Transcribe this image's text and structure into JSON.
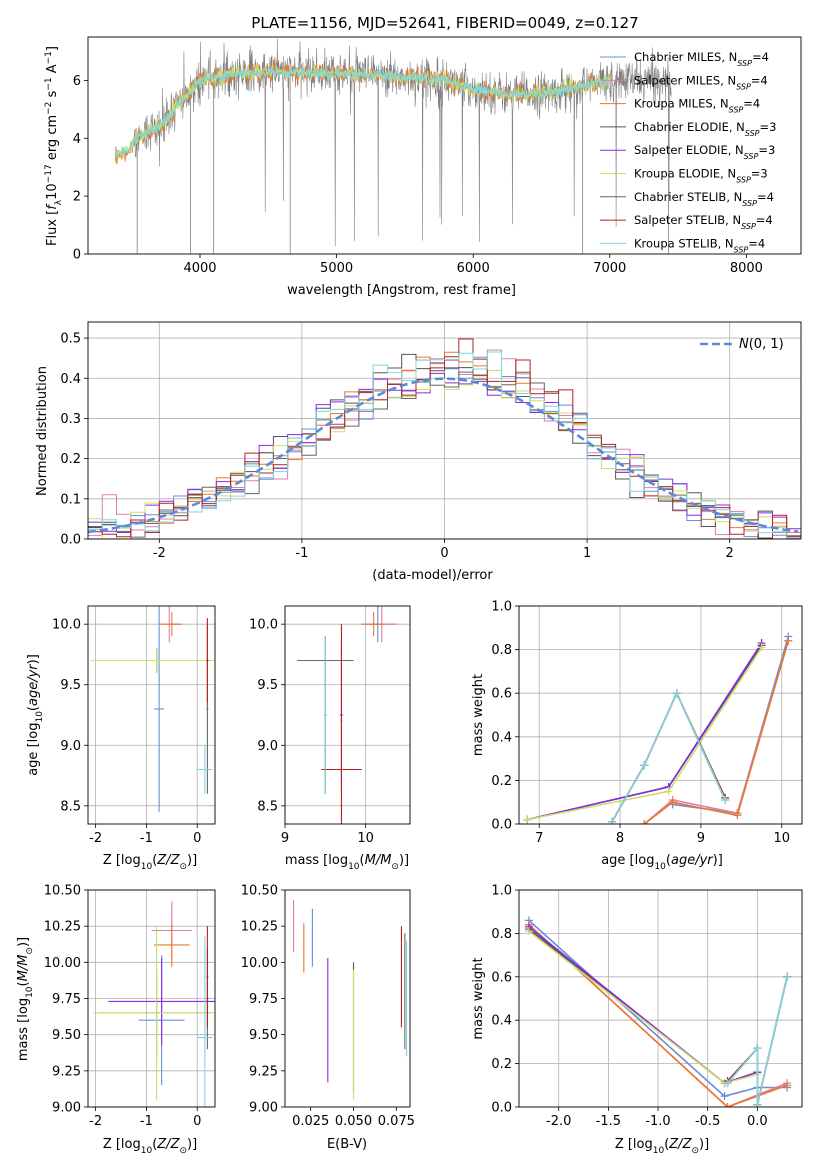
{
  "figure": {
    "title": "PLATE=1156, MJD=52641, FIBERID=0049, z=0.127"
  },
  "colors": {
    "Chabrier MILES": "#6b8fd6",
    "Salpeter MILES": "#e07ca8",
    "Kroupa MILES": "#e8792c",
    "Chabrier ELODIE": "#555555",
    "Salpeter ELODIE": "#8a2be2",
    "Kroupa ELODIE": "#c8e06a",
    "Chabrier STELIB": "#666666",
    "Salpeter STELIB": "#b22222",
    "Kroupa STELIB": "#7fd6de"
  },
  "chart_data": [
    {
      "id": "spectrum",
      "type": "line",
      "title": "PLATE=1156, MJD=52641, FIBERID=0049, z=0.127",
      "xlabel": "wavelength [Angstrom, rest frame]",
      "ylabel": "Flux [f_λ 10^-17 erg cm^-2 s^-1 A^-1]",
      "xlim": [
        3180,
        8400
      ],
      "ylim": [
        0,
        7.5
      ],
      "xticks": [
        4000,
        5000,
        6000,
        7000,
        8000
      ],
      "yticks": [
        0,
        2,
        4,
        6
      ],
      "legend_position": "top-right",
      "legend": [
        {
          "label": "Chabrier MILES, N",
          "sub": "SSP",
          "suffix": "=4"
        },
        {
          "label": "Salpeter MILES, N",
          "sub": "SSP",
          "suffix": "=4"
        },
        {
          "label": "Kroupa MILES, N",
          "sub": "SSP",
          "suffix": "=4"
        },
        {
          "label": "Chabrier ELODIE, N",
          "sub": "SSP",
          "suffix": "=3"
        },
        {
          "label": "Salpeter ELODIE, N",
          "sub": "SSP",
          "suffix": "=3"
        },
        {
          "label": "Kroupa ELODIE, N",
          "sub": "SSP",
          "suffix": "=3"
        },
        {
          "label": "Chabrier STELIB, N",
          "sub": "SSP",
          "suffix": "=4"
        },
        {
          "label": "Salpeter STELIB, N",
          "sub": "SSP",
          "suffix": "=4"
        },
        {
          "label": "Kroupa STELIB, N",
          "sub": "SSP",
          "suffix": "=4"
        }
      ],
      "continuum_knots": [
        [
          3380,
          3.4
        ],
        [
          3480,
          3.6
        ],
        [
          3550,
          4.1
        ],
        [
          3700,
          4.4
        ],
        [
          3900,
          5.5
        ],
        [
          4000,
          6.0
        ],
        [
          4200,
          6.2
        ],
        [
          4500,
          6.3
        ],
        [
          5000,
          6.25
        ],
        [
          5500,
          6.1
        ],
        [
          5800,
          6.0
        ],
        [
          6000,
          5.7
        ],
        [
          6300,
          5.5
        ],
        [
          6600,
          5.6
        ],
        [
          7000,
          6.0
        ],
        [
          7200,
          6.0
        ]
      ],
      "gray_observed_range": [
        3500,
        7450
      ],
      "model_range": [
        3380,
        7000
      ]
    },
    {
      "id": "residuals",
      "type": "line",
      "xlabel": "(data-model)/error",
      "ylabel": "Normed distribution",
      "xlim": [
        -2.5,
        2.5
      ],
      "ylim": [
        0,
        0.54
      ],
      "xticks": [
        -2,
        -1,
        0,
        1,
        2
      ],
      "yticks": [
        0.0,
        0.1,
        0.2,
        0.3,
        0.4,
        0.5
      ],
      "grid": true,
      "legend_position": "top-right",
      "legend": "N(0,1)",
      "gaussian": {
        "mean": 0,
        "sigma": 1,
        "style": "dashed",
        "color": "#5b8bd6"
      },
      "bin_width": 0.1
    },
    {
      "id": "age-vs-Z",
      "type": "scatter",
      "xlabel": "Z [log10(Z/Z⊙)]",
      "ylabel": "age [log10(age/yr)]",
      "xlim": [
        -2.15,
        0.35
      ],
      "ylim": [
        8.35,
        10.15
      ],
      "xticks": [
        -2,
        -1,
        0
      ],
      "yticks": [
        8.5,
        9.0,
        9.5,
        10.0
      ],
      "grid": true,
      "errorbars": [
        {
          "model": "Chabrier MILES",
          "x": -0.75,
          "xerr": 0.1,
          "y": 9.3,
          "yerr": 0.85
        },
        {
          "model": "Salpeter MILES",
          "x": -0.55,
          "xerr": 0.2,
          "y": 10.0,
          "yerr": 0.15
        },
        {
          "model": "Kroupa MILES",
          "x": -0.5,
          "xerr": 0.2,
          "y": 10.0,
          "yerr": 0.1
        },
        {
          "model": "Chabrier ELODIE",
          "x": -0.8,
          "xerr": 1.3,
          "y": 9.7,
          "yerr": 0.1
        },
        {
          "model": "Salpeter ELODIE",
          "x": -0.8,
          "xerr": 1.3,
          "y": 9.7,
          "yerr": 0.1
        },
        {
          "model": "Kroupa ELODIE",
          "x": -0.8,
          "xerr": 1.3,
          "y": 9.7,
          "yerr": 0.1
        },
        {
          "model": "Chabrier STELIB",
          "x": 0.2,
          "xerr": 0.02,
          "y": 9.3,
          "yerr": 0.7
        },
        {
          "model": "Salpeter STELIB",
          "x": 0.2,
          "xerr": 0.02,
          "y": 9.7,
          "yerr": 0.35
        },
        {
          "model": "Kroupa STELIB",
          "x": 0.15,
          "xerr": 0.15,
          "y": 8.8,
          "yerr": 0.2
        }
      ]
    },
    {
      "id": "age-vs-mass",
      "type": "scatter",
      "xlabel": "mass [log10(M/M⊙)]",
      "ylabel": "",
      "xlim": [
        9.0,
        10.55
      ],
      "ylim": [
        8.35,
        10.15
      ],
      "xticks": [
        9,
        10
      ],
      "yticks": [
        8.5,
        9.0,
        9.5,
        10.0
      ],
      "grid": true,
      "errorbars": [
        {
          "model": "Chabrier MILES",
          "x": 10.15,
          "xerr": 0.2,
          "y": 10.0,
          "yerr": 0.15
        },
        {
          "model": "Salpeter MILES",
          "x": 10.2,
          "xerr": 0.2,
          "y": 10.0,
          "yerr": 0.15
        },
        {
          "model": "Kroupa MILES",
          "x": 10.1,
          "xerr": 0.15,
          "y": 10.0,
          "yerr": 0.1
        },
        {
          "model": "Chabrier ELODIE",
          "x": 9.5,
          "xerr": 0.02,
          "y": 9.25,
          "yerr": 0.65
        },
        {
          "model": "Salpeter ELODIE",
          "x": 9.7,
          "xerr": 0.02,
          "y": 9.25,
          "yerr": 0.6
        },
        {
          "model": "Kroupa ELODIE",
          "x": 9.7,
          "xerr": 0.02,
          "y": 9.2,
          "yerr": 0.6
        },
        {
          "model": "Chabrier STELIB",
          "x": 9.5,
          "xerr": 0.35,
          "y": 9.7,
          "yerr": 0.0
        },
        {
          "model": "Salpeter STELIB",
          "x": 9.7,
          "xerr": 0.25,
          "y": 8.8,
          "yerr": 1.2
        },
        {
          "model": "Kroupa STELIB",
          "x": 9.5,
          "xerr": 0.02,
          "y": 9.25,
          "yerr": 0.65
        }
      ]
    },
    {
      "id": "mass-weight-vs-age",
      "type": "line",
      "xlabel": "age [log10(age/yr)]",
      "ylabel": "mass weight",
      "xlim": [
        6.75,
        10.25
      ],
      "ylim": [
        0,
        1.0
      ],
      "xticks": [
        7,
        8,
        9,
        10
      ],
      "yticks": [
        0.0,
        0.2,
        0.4,
        0.6,
        0.8,
        1.0
      ],
      "grid": true,
      "series": [
        {
          "model": "Chabrier MILES",
          "x": [
            8.65,
            9.45,
            10.08
          ],
          "y": [
            0.09,
            0.05,
            0.86
          ]
        },
        {
          "model": "Salpeter MILES",
          "x": [
            8.3,
            8.65,
            9.45,
            10.08
          ],
          "y": [
            0.0,
            0.11,
            0.05,
            0.84
          ]
        },
        {
          "model": "Kroupa MILES",
          "x": [
            8.3,
            8.65,
            9.45,
            10.08
          ],
          "y": [
            0.0,
            0.1,
            0.04,
            0.84
          ]
        },
        {
          "model": "Chabrier ELODIE",
          "x": [
            6.85,
            8.6,
            9.75
          ],
          "y": [
            0.02,
            0.17,
            0.82
          ]
        },
        {
          "model": "Salpeter ELODIE",
          "x": [
            6.85,
            8.6,
            9.75
          ],
          "y": [
            0.02,
            0.17,
            0.83
          ]
        },
        {
          "model": "Kroupa ELODIE",
          "x": [
            6.85,
            8.6,
            9.75
          ],
          "y": [
            0.02,
            0.15,
            0.81
          ]
        },
        {
          "model": "Chabrier STELIB",
          "x": [
            7.9,
            8.3,
            8.7,
            9.3
          ],
          "y": [
            0.01,
            0.27,
            0.6,
            0.11
          ]
        },
        {
          "model": "Salpeter STELIB",
          "x": [
            7.9,
            8.3,
            8.7,
            9.3
          ],
          "y": [
            0.01,
            0.27,
            0.6,
            0.12
          ]
        },
        {
          "model": "Kroupa STELIB",
          "x": [
            7.9,
            8.3,
            8.7,
            9.3
          ],
          "y": [
            0.01,
            0.27,
            0.6,
            0.11
          ]
        }
      ]
    },
    {
      "id": "mass-vs-Z",
      "type": "scatter",
      "xlabel": "Z [log10(Z/Z⊙)]",
      "ylabel": "mass [log10(M/M⊙)]",
      "xlim": [
        -2.15,
        0.35
      ],
      "ylim": [
        9.0,
        10.5
      ],
      "xticks": [
        -2,
        -1,
        0
      ],
      "yticks": [
        9.0,
        9.25,
        9.5,
        9.75,
        10.0,
        10.25,
        10.5
      ],
      "grid": true,
      "errorbars": [
        {
          "model": "Chabrier MILES",
          "x": -0.7,
          "xerr": 0.45,
          "y": 9.6,
          "yerr": 0.45
        },
        {
          "model": "Salpeter MILES",
          "x": -0.5,
          "xerr": 0.4,
          "y": 10.22,
          "yerr": 0.2
        },
        {
          "model": "Kroupa MILES",
          "x": -0.5,
          "xerr": 0.35,
          "y": 10.12,
          "yerr": 0.15
        },
        {
          "model": "Chabrier ELODIE",
          "x": -0.8,
          "xerr": 1.1,
          "y": 9.65,
          "yerr": 0.3
        },
        {
          "model": "Salpeter ELODIE",
          "x": -0.7,
          "xerr": 1.05,
          "y": 9.73,
          "yerr": 0.3
        },
        {
          "model": "Kroupa ELODIE",
          "x": -0.8,
          "xerr": 1.25,
          "y": 9.65,
          "yerr": 0.6
        },
        {
          "model": "Chabrier STELIB",
          "x": 0.2,
          "xerr": 0.02,
          "y": 9.75,
          "yerr": 0.35
        },
        {
          "model": "Salpeter STELIB",
          "x": 0.2,
          "xerr": 0.02,
          "y": 9.9,
          "yerr": 0.35
        },
        {
          "model": "Kroupa STELIB",
          "x": 0.15,
          "xerr": 0.15,
          "y": 9.48,
          "yerr": 0.7
        }
      ]
    },
    {
      "id": "mass-vs-ebv",
      "type": "scatter",
      "xlabel": "E(B-V)",
      "ylabel": "",
      "xlim": [
        0.01,
        0.083
      ],
      "ylim": [
        9.0,
        10.5
      ],
      "xticks": [
        0.025,
        0.05,
        0.075
      ],
      "yticks": [
        9.0,
        9.25,
        9.5,
        9.75,
        10.0,
        10.25,
        10.5
      ],
      "grid": false,
      "errorbars": [
        {
          "model": "Chabrier MILES",
          "x": 0.026,
          "xerr": 0,
          "y": 10.17,
          "yerr": 0.2
        },
        {
          "model": "Salpeter MILES",
          "x": 0.015,
          "xerr": 0,
          "y": 10.25,
          "yerr": 0.18
        },
        {
          "model": "Kroupa MILES",
          "x": 0.021,
          "xerr": 0,
          "y": 10.1,
          "yerr": 0.17
        },
        {
          "model": "Chabrier ELODIE",
          "x": 0.05,
          "xerr": 0,
          "y": 9.55,
          "yerr": 0.45
        },
        {
          "model": "Salpeter ELODIE",
          "x": 0.035,
          "xerr": 0,
          "y": 9.6,
          "yerr": 0.43
        },
        {
          "model": "Kroupa ELODIE",
          "x": 0.05,
          "xerr": 0,
          "y": 9.5,
          "yerr": 0.45
        },
        {
          "model": "Chabrier STELIB",
          "x": 0.08,
          "xerr": 0,
          "y": 9.8,
          "yerr": 0.4
        },
        {
          "model": "Salpeter STELIB",
          "x": 0.078,
          "xerr": 0,
          "y": 9.9,
          "yerr": 0.35
        },
        {
          "model": "Kroupa STELIB",
          "x": 0.081,
          "xerr": 0,
          "y": 9.75,
          "yerr": 0.4
        }
      ]
    },
    {
      "id": "mass-weight-vs-Z",
      "type": "line",
      "xlabel": "Z [log10(Z/Z⊙)]",
      "ylabel": "mass weight",
      "xlim": [
        -2.4,
        0.45
      ],
      "ylim": [
        0,
        1.0
      ],
      "xticks": [
        -2.0,
        -1.5,
        -1.0,
        -0.5,
        0.0
      ],
      "yticks": [
        0.0,
        0.2,
        0.4,
        0.6,
        0.8,
        1.0
      ],
      "grid": true,
      "series": [
        {
          "model": "Chabrier MILES",
          "x": [
            -2.3,
            -0.33,
            0.0,
            0.3
          ],
          "y": [
            0.86,
            0.05,
            0.09,
            0.09
          ]
        },
        {
          "model": "Salpeter MILES",
          "x": [
            -2.3,
            -0.3,
            0.3
          ],
          "y": [
            0.84,
            0.0,
            0.11
          ]
        },
        {
          "model": "Kroupa MILES",
          "x": [
            -2.3,
            -0.3,
            0.3
          ],
          "y": [
            0.84,
            0.0,
            0.1
          ]
        },
        {
          "model": "Chabrier ELODIE",
          "x": [
            -2.3,
            -0.33,
            0.0
          ],
          "y": [
            0.82,
            0.11,
            0.16
          ]
        },
        {
          "model": "Salpeter ELODIE",
          "x": [
            -2.3,
            -0.33,
            0.0
          ],
          "y": [
            0.83,
            0.11,
            0.16
          ]
        },
        {
          "model": "Kroupa ELODIE",
          "x": [
            -2.3,
            -0.33,
            0.0
          ],
          "y": [
            0.81,
            0.11,
            0.15
          ]
        },
        {
          "model": "Chabrier STELIB",
          "x": [
            -0.3,
            0.0,
            0.0,
            0.3
          ],
          "y": [
            0.11,
            0.27,
            0.01,
            0.6
          ]
        },
        {
          "model": "Salpeter STELIB",
          "x": [
            -0.3,
            0.0,
            0.0,
            0.3
          ],
          "y": [
            0.12,
            0.27,
            0.01,
            0.6
          ]
        },
        {
          "model": "Kroupa STELIB",
          "x": [
            -0.3,
            0.0,
            0.0,
            0.3
          ],
          "y": [
            0.11,
            0.27,
            0.01,
            0.6
          ]
        }
      ]
    }
  ]
}
